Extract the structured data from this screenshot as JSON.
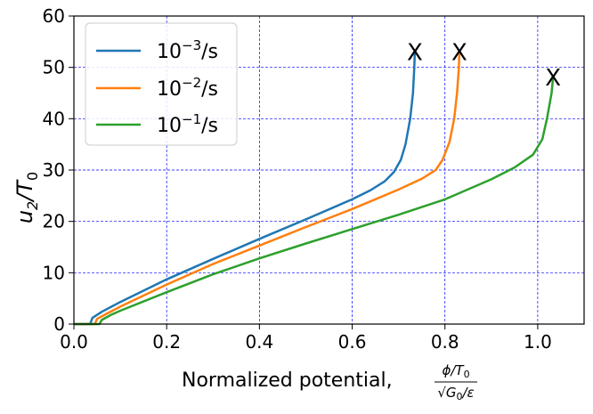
{
  "chart_data": {
    "type": "line",
    "title": "",
    "xlabel": {
      "text": "Normalized potential, ",
      "frac_num_phi": "ϕ",
      "frac_num_rest": "/T",
      "frac_num_sub": "0",
      "frac_den_pre": "√",
      "frac_den_g": "G",
      "frac_den_sub": "0",
      "frac_den_rest": "/ε"
    },
    "ylabel": {
      "main": "u",
      "sub1": "2",
      "slash": "/T",
      "sub2": "0"
    },
    "xlim": [
      0.0,
      1.1
    ],
    "ylim": [
      0,
      60
    ],
    "xticks": [
      {
        "value": 0.0,
        "label": "0.0"
      },
      {
        "value": 0.2,
        "label": "0.2"
      },
      {
        "value": 0.4,
        "label": "0.4"
      },
      {
        "value": 0.6,
        "label": "0.6"
      },
      {
        "value": 0.8,
        "label": "0.8"
      },
      {
        "value": 1.0,
        "label": "1.0"
      }
    ],
    "yticks": [
      {
        "value": 0,
        "label": "0"
      },
      {
        "value": 10,
        "label": "10"
      },
      {
        "value": 20,
        "label": "20"
      },
      {
        "value": 30,
        "label": "30"
      },
      {
        "value": 40,
        "label": "40"
      },
      {
        "value": 50,
        "label": "50"
      },
      {
        "value": 60,
        "label": "60"
      }
    ],
    "grid": true,
    "grid_color": "#0000ff",
    "legend_position": "top-left",
    "series": [
      {
        "legend_base": "10",
        "legend_exp": "−3",
        "legend_unit": "/s",
        "color": "#1f77b4",
        "end_label": "X",
        "points": [
          [
            0.0,
            0
          ],
          [
            0.035,
            0
          ],
          [
            0.04,
            1.2
          ],
          [
            0.06,
            2.4
          ],
          [
            0.1,
            4.3
          ],
          [
            0.2,
            8.7
          ],
          [
            0.3,
            12.7
          ],
          [
            0.4,
            16.6
          ],
          [
            0.5,
            20.4
          ],
          [
            0.6,
            24.3
          ],
          [
            0.64,
            26.1
          ],
          [
            0.67,
            27.8
          ],
          [
            0.69,
            29.6
          ],
          [
            0.705,
            32
          ],
          [
            0.715,
            35
          ],
          [
            0.725,
            40
          ],
          [
            0.731,
            45
          ],
          [
            0.734,
            50
          ],
          [
            0.735,
            53
          ]
        ]
      },
      {
        "legend_base": "10",
        "legend_exp": "−2",
        "legend_unit": "/s",
        "color": "#ff7f0e",
        "end_label": "X",
        "points": [
          [
            0.0,
            0
          ],
          [
            0.045,
            0
          ],
          [
            0.05,
            1.0
          ],
          [
            0.07,
            2.0
          ],
          [
            0.1,
            3.4
          ],
          [
            0.2,
            7.7
          ],
          [
            0.3,
            11.7
          ],
          [
            0.4,
            15.3
          ],
          [
            0.5,
            18.9
          ],
          [
            0.6,
            22.4
          ],
          [
            0.7,
            26.2
          ],
          [
            0.75,
            28.3
          ],
          [
            0.78,
            30
          ],
          [
            0.795,
            32
          ],
          [
            0.81,
            35.5
          ],
          [
            0.82,
            40
          ],
          [
            0.826,
            45
          ],
          [
            0.83,
            50
          ],
          [
            0.831,
            53
          ]
        ]
      },
      {
        "legend_base": "10",
        "legend_exp": "−1",
        "legend_unit": "/s",
        "color": "#2ca02c",
        "end_label": "X",
        "points": [
          [
            0.0,
            0
          ],
          [
            0.055,
            0
          ],
          [
            0.06,
            0.8
          ],
          [
            0.08,
            1.8
          ],
          [
            0.1,
            2.6
          ],
          [
            0.2,
            6.2
          ],
          [
            0.3,
            9.7
          ],
          [
            0.4,
            12.8
          ],
          [
            0.5,
            15.7
          ],
          [
            0.6,
            18.5
          ],
          [
            0.7,
            21.3
          ],
          [
            0.8,
            24.3
          ],
          [
            0.9,
            28.2
          ],
          [
            0.95,
            30.5
          ],
          [
            0.99,
            33
          ],
          [
            1.01,
            36
          ],
          [
            1.02,
            40
          ],
          [
            1.03,
            45
          ],
          [
            1.033,
            48
          ]
        ]
      }
    ]
  }
}
